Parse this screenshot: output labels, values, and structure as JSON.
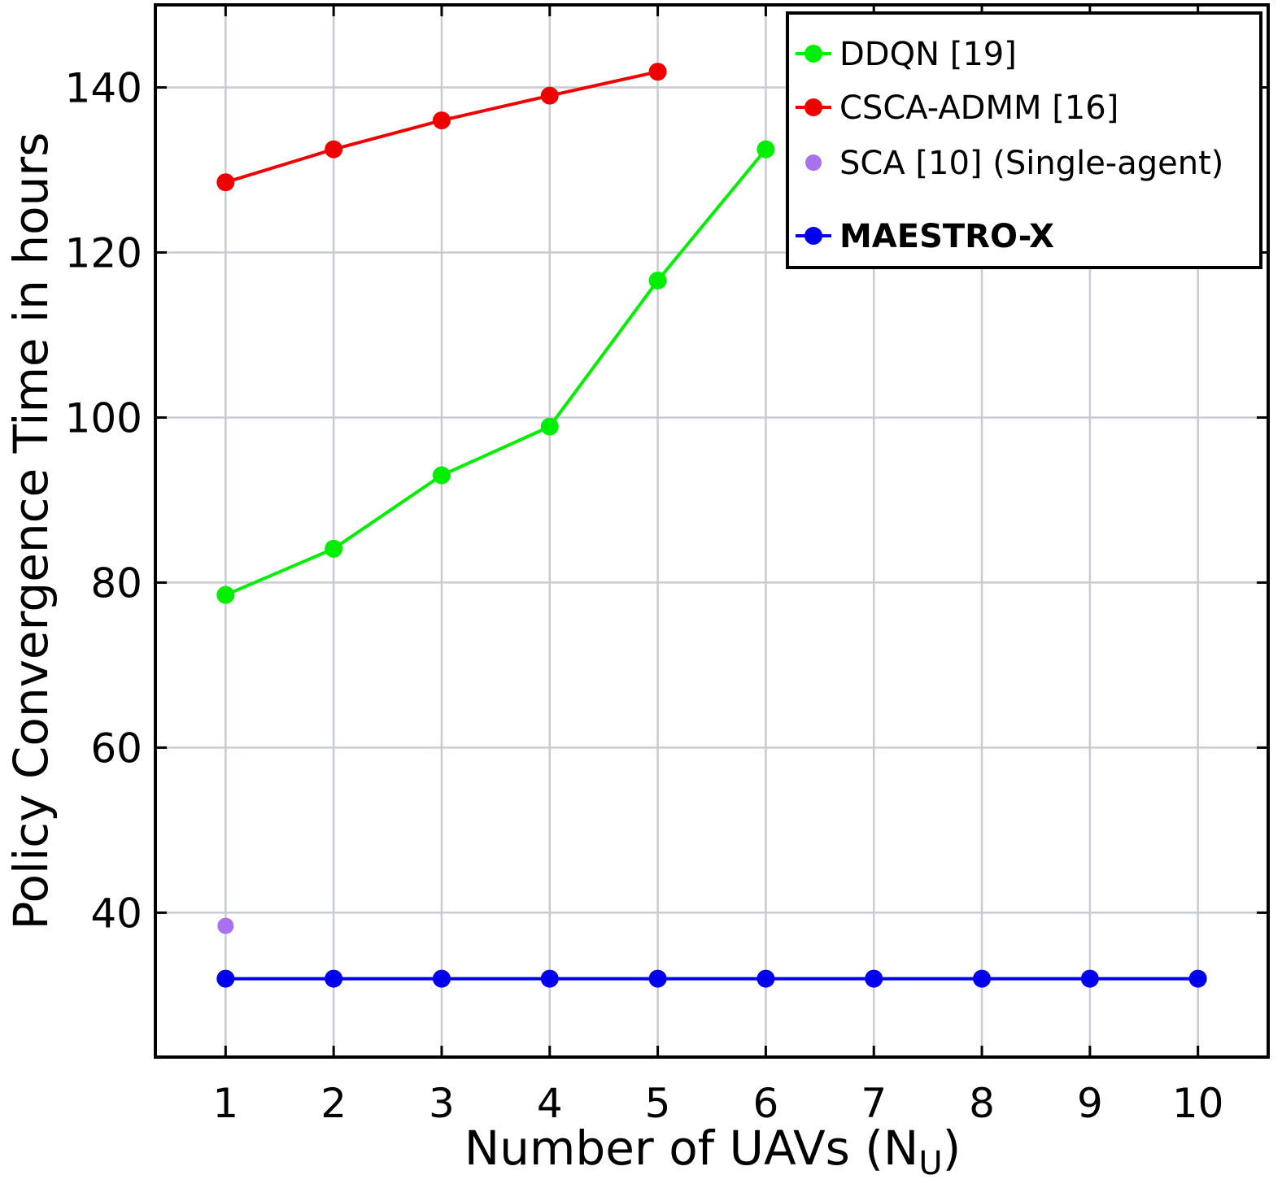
{
  "chart_data": {
    "type": "line",
    "xlabel": "Number of UAVs (N",
    "xlabel_subscript": "U",
    "xlabel_close": ")",
    "ylabel": "Policy Convergence Time in hours",
    "x": [
      1,
      2,
      3,
      4,
      5,
      6,
      7,
      8,
      9,
      10
    ],
    "xlim": [
      0.35,
      10.65
    ],
    "ylim": [
      22.5,
      150
    ],
    "xticks": [
      1,
      2,
      3,
      4,
      5,
      6,
      7,
      8,
      9,
      10
    ],
    "yticks": [
      40,
      60,
      80,
      100,
      120,
      140
    ],
    "grid": true,
    "legend_position": "top-right",
    "series": [
      {
        "name": "DDQN [19]",
        "color": "#00ee00",
        "line": true,
        "x": [
          1,
          2,
          3,
          4,
          5,
          6
        ],
        "values": [
          78.5,
          84.1,
          93.0,
          98.9,
          116.6,
          132.5
        ]
      },
      {
        "name": "CSCA-ADMM [16]",
        "color": "#ee0000",
        "line": true,
        "x": [
          1,
          2,
          3,
          4,
          5
        ],
        "values": [
          128.5,
          132.5,
          136.0,
          139.0,
          141.9
        ]
      },
      {
        "name": "SCA [10] (Single-agent)",
        "color": "#a970f0",
        "line": false,
        "x": [
          1
        ],
        "values": [
          38.4
        ]
      },
      {
        "name": "MAESTRO-X",
        "color": "#0000ee",
        "line": true,
        "bold_label": true,
        "x": [
          1,
          2,
          3,
          4,
          5,
          6,
          7,
          8,
          9,
          10
        ],
        "values": [
          32.0,
          32.0,
          32.0,
          32.0,
          32.0,
          32.0,
          32.0,
          32.0,
          32.0,
          32.0
        ]
      }
    ]
  }
}
